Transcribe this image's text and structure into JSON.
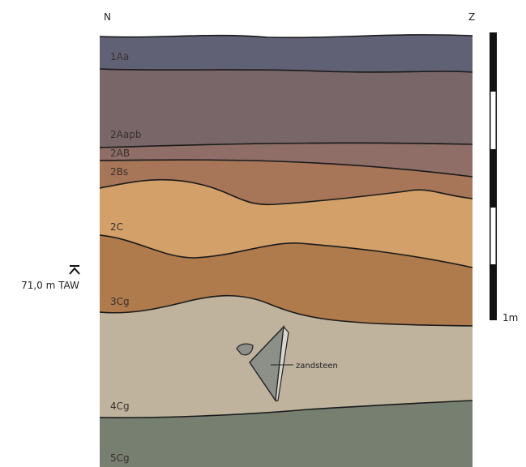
{
  "orientation": {
    "north": "N",
    "south": "Z"
  },
  "layers": [
    {
      "label": "1Aa"
    },
    {
      "label": "2Aapb"
    },
    {
      "label": "2AB"
    },
    {
      "label": "2Bs"
    },
    {
      "label": "2C"
    },
    {
      "label": "3Cg"
    },
    {
      "label": "4Cg"
    },
    {
      "label": "5Cg"
    }
  ],
  "elevation_marker": "71,0 m TAW",
  "scale_bar": "1m",
  "annotation": "zandsteen"
}
